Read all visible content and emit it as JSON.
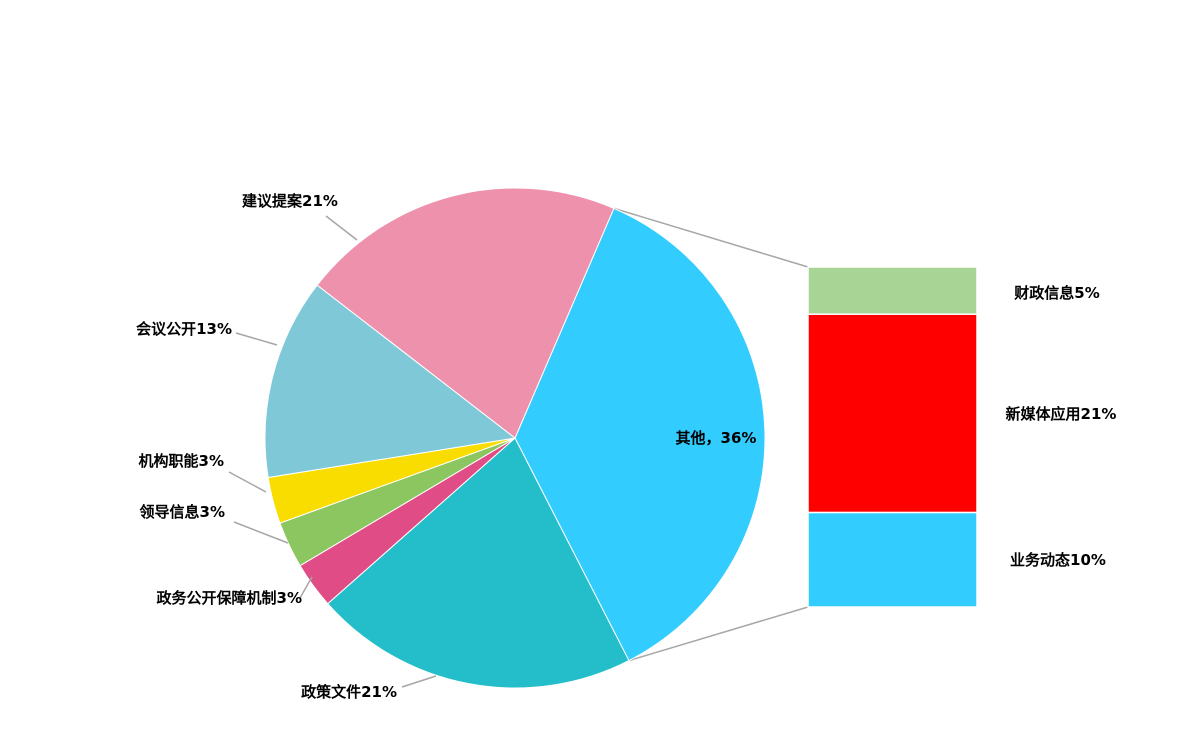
{
  "chart_data": {
    "type": "pie-of-bar",
    "title": "",
    "pie": {
      "slices": [
        {
          "label": "其他，36%",
          "value": 36,
          "color": "#33CCFF"
        },
        {
          "label": "政策文件21%",
          "value": 21,
          "color": "#23BECA"
        },
        {
          "label": "政务公开保障机制3%",
          "value": 3,
          "color": "#E04D86"
        },
        {
          "label": "领导信息3%",
          "value": 3,
          "color": "#8CC660"
        },
        {
          "label": "机构职能3%",
          "value": 3,
          "color": "#F9DD00"
        },
        {
          "label": "会议公开13%",
          "value": 13,
          "color": "#7FC8D8"
        },
        {
          "label": "建议提案21%",
          "value": 21,
          "color": "#EE91AC"
        }
      ]
    },
    "bar": {
      "segments": [
        {
          "label": "财政信息5%",
          "value": 5,
          "color": "#A8D595"
        },
        {
          "label": "新媒体应用21%",
          "value": 21,
          "color": "#FF0000"
        },
        {
          "label": "业务动态10%",
          "value": 10,
          "color": "#33CCFF"
        }
      ]
    },
    "connector_color": "#A6A6A6",
    "legend": "none"
  }
}
